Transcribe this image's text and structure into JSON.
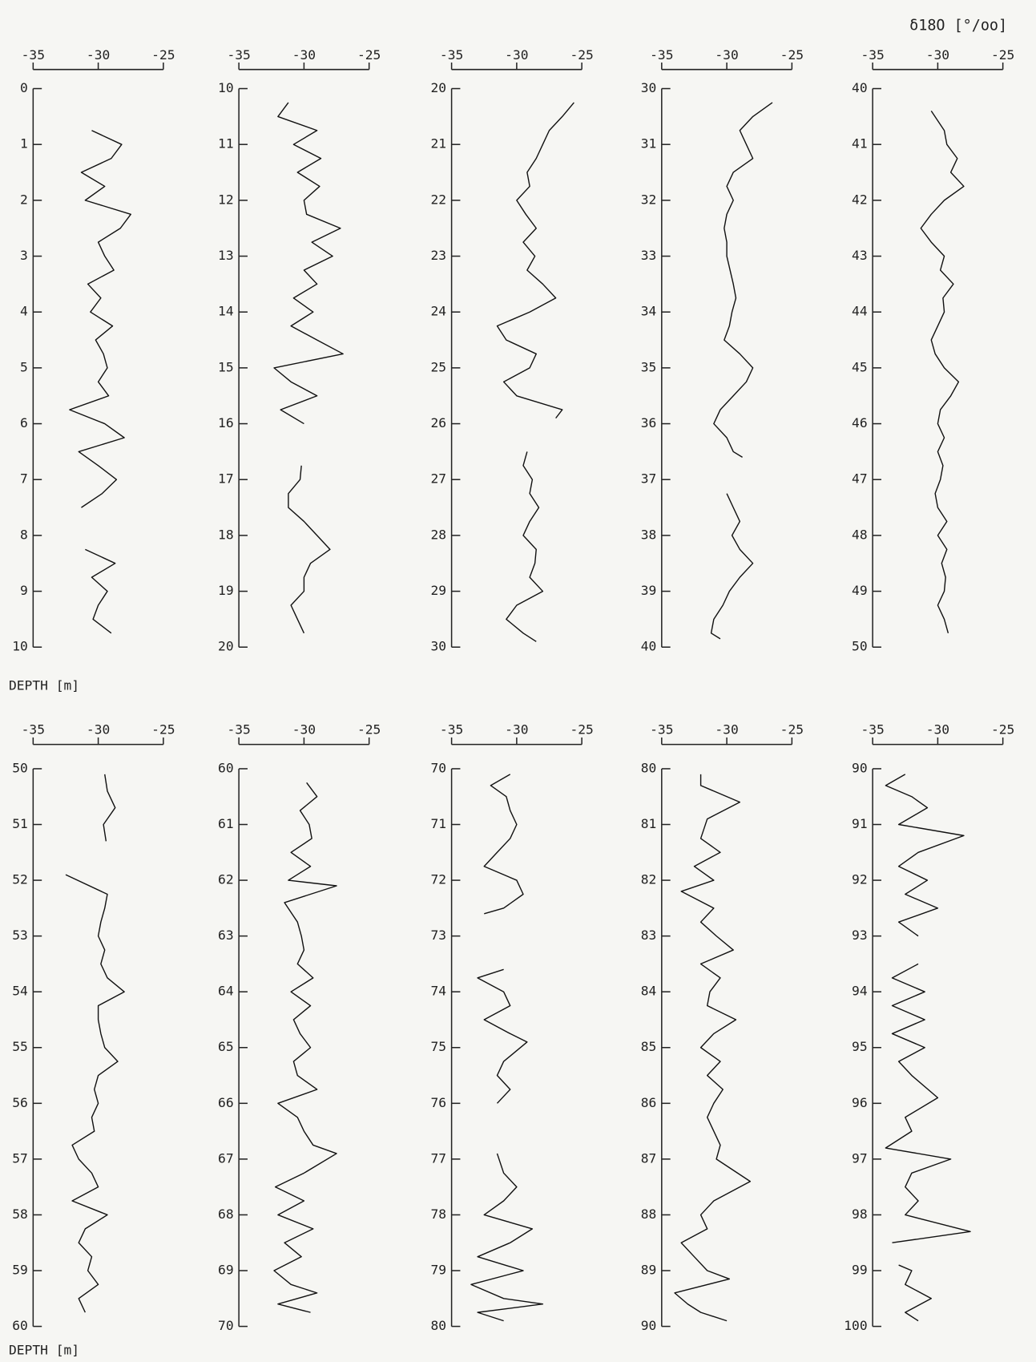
{
  "chart_data": [
    {
      "type": "line",
      "color": "#111111",
      "x_label_side": "none",
      "y_label": "DEPTH [m]",
      "xlim": [
        -35,
        -25
      ],
      "xticks": [
        -35,
        -30,
        -25
      ],
      "ylim": [
        0,
        10
      ],
      "yticks": [
        0,
        1,
        2,
        3,
        4,
        5,
        6,
        7,
        8,
        9,
        10
      ],
      "y": [
        0.75,
        1.0,
        1.25,
        1.5,
        1.75,
        2.0,
        2.25,
        2.5,
        2.75,
        3.0,
        3.25,
        3.5,
        3.75,
        4.0,
        4.25,
        4.5,
        4.75,
        5.0,
        5.25,
        5.5,
        5.75,
        6.0,
        6.25,
        6.5,
        6.75,
        7.0,
        7.25,
        7.5,
        8.0,
        8.25,
        8.5,
        8.75,
        9.0,
        9.25,
        9.5,
        9.75
      ],
      "values": [
        -30.5,
        -28.2,
        -29.0,
        -31.3,
        -29.5,
        -31.0,
        -27.5,
        -28.3,
        -30.0,
        -29.5,
        -28.8,
        -30.8,
        -29.8,
        -30.6,
        -28.9,
        -30.2,
        -29.6,
        -29.3,
        -30.0,
        -29.2,
        -32.2,
        -29.5,
        -28.0,
        -31.5,
        -30.0,
        -28.6,
        -29.7,
        -31.3,
        null,
        -31.0,
        -28.7,
        -30.5,
        -29.3,
        -30.0,
        -30.4,
        -29.0
      ]
    },
    {
      "type": "line",
      "color": "#111111",
      "xlim": [
        -35,
        -25
      ],
      "xticks": [
        -35,
        -30,
        -25
      ],
      "ylim": [
        10,
        20
      ],
      "yticks": [
        10,
        11,
        12,
        13,
        14,
        15,
        16,
        17,
        18,
        19,
        20
      ],
      "y": [
        10.25,
        10.5,
        10.75,
        11.0,
        11.25,
        11.5,
        11.75,
        12.0,
        12.25,
        12.5,
        12.75,
        13.0,
        13.25,
        13.5,
        13.75,
        14.0,
        14.25,
        14.5,
        14.75,
        15.0,
        15.25,
        15.5,
        15.75,
        16.0,
        16.4,
        16.75,
        17.0,
        17.25,
        17.5,
        17.75,
        18.0,
        18.25,
        18.5,
        18.75,
        19.0,
        19.25,
        19.5,
        19.75
      ],
      "values": [
        -31.2,
        -32.0,
        -29.0,
        -30.8,
        -28.7,
        -30.5,
        -28.8,
        -30.0,
        -29.8,
        -27.2,
        -29.4,
        -27.8,
        -30.0,
        -29.0,
        -30.8,
        -29.3,
        -31.0,
        -29.0,
        -27.0,
        -32.3,
        -31.0,
        -29.0,
        -31.8,
        -30.0,
        null,
        -30.2,
        -30.3,
        -31.2,
        -31.2,
        -30.0,
        -29.0,
        -28.0,
        -29.5,
        -30.0,
        -30.0,
        -31.0,
        -30.5,
        -30.0
      ]
    },
    {
      "type": "line",
      "color": "#111111",
      "xlim": [
        -35,
        -25
      ],
      "xticks": [
        -35,
        -30,
        -25
      ],
      "ylim": [
        20,
        30
      ],
      "yticks": [
        20,
        21,
        22,
        23,
        24,
        25,
        26,
        27,
        28,
        29,
        30
      ],
      "y": [
        20.25,
        20.5,
        20.75,
        21.0,
        21.25,
        21.5,
        21.75,
        22.0,
        22.25,
        22.5,
        22.75,
        23.0,
        23.25,
        23.5,
        23.75,
        24.0,
        24.25,
        24.5,
        24.75,
        25.0,
        25.25,
        25.5,
        25.75,
        25.9,
        26.2,
        26.5,
        26.75,
        27.0,
        27.25,
        27.5,
        27.75,
        28.0,
        28.25,
        28.5,
        28.75,
        29.0,
        29.25,
        29.5,
        29.75,
        29.9
      ],
      "values": [
        -25.6,
        -26.5,
        -27.5,
        -28.0,
        -28.5,
        -29.2,
        -29.0,
        -30.0,
        -29.3,
        -28.5,
        -29.5,
        -28.6,
        -29.2,
        -28.0,
        -27.0,
        -29.0,
        -31.5,
        -30.8,
        -28.5,
        -29.0,
        -31.0,
        -30.0,
        -26.5,
        -27.0,
        null,
        -29.2,
        -29.5,
        -28.8,
        -29.0,
        -28.3,
        -29.0,
        -29.5,
        -28.5,
        -28.6,
        -29.0,
        -28.0,
        -30.0,
        -30.8,
        -29.5,
        -28.5
      ]
    },
    {
      "type": "line",
      "color": "#111111",
      "xlim": [
        -35,
        -25
      ],
      "xticks": [
        -35,
        -30,
        -25
      ],
      "ylim": [
        30,
        40
      ],
      "yticks": [
        30,
        31,
        32,
        33,
        34,
        35,
        36,
        37,
        38,
        39,
        40
      ],
      "y": [
        30.25,
        30.5,
        30.75,
        31.0,
        31.25,
        31.5,
        31.75,
        32.0,
        32.25,
        32.5,
        32.75,
        33.0,
        33.5,
        33.75,
        34.0,
        34.25,
        34.5,
        34.75,
        35.0,
        35.25,
        35.5,
        35.75,
        36.0,
        36.25,
        36.5,
        36.6,
        36.9,
        37.25,
        37.5,
        37.75,
        38.0,
        38.25,
        38.5,
        38.75,
        39.0,
        39.25,
        39.5,
        39.75,
        39.85
      ],
      "values": [
        -26.5,
        -28.0,
        -29.0,
        -28.5,
        -28.0,
        -29.5,
        -30.0,
        -29.5,
        -30.0,
        -30.2,
        -30.0,
        -30.0,
        -29.5,
        -29.3,
        -29.6,
        -29.8,
        -30.2,
        -29.0,
        -28.0,
        -28.5,
        -29.5,
        -30.5,
        -31.0,
        -30.0,
        -29.5,
        -28.8,
        null,
        -30.0,
        -29.5,
        -29.0,
        -29.6,
        -29.0,
        -28.0,
        -29.0,
        -29.8,
        -30.3,
        -31.0,
        -31.2,
        -30.5
      ]
    },
    {
      "type": "line",
      "color": "#111111",
      "x_label": "δ18O [°/oo]",
      "xlim": [
        -35,
        -25
      ],
      "xticks": [
        -35,
        -30,
        -25
      ],
      "ylim": [
        40,
        50
      ],
      "yticks": [
        40,
        41,
        42,
        43,
        44,
        45,
        46,
        47,
        48,
        49,
        50
      ],
      "y": [
        40.4,
        40.75,
        41.0,
        41.25,
        41.5,
        41.75,
        42.0,
        42.25,
        42.5,
        42.75,
        43.0,
        43.25,
        43.5,
        43.75,
        44.0,
        44.25,
        44.5,
        44.75,
        45.0,
        45.25,
        45.5,
        45.75,
        46.0,
        46.25,
        46.5,
        46.75,
        47.0,
        47.25,
        47.5,
        47.75,
        48.0,
        48.25,
        48.5,
        48.75,
        49.0,
        49.25,
        49.5,
        49.75
      ],
      "values": [
        -30.5,
        -29.5,
        -29.3,
        -28.5,
        -29.0,
        -28.0,
        -29.5,
        -30.5,
        -31.3,
        -30.5,
        -29.5,
        -29.8,
        -28.8,
        -29.6,
        -29.5,
        -30.0,
        -30.5,
        -30.2,
        -29.5,
        -28.4,
        -29.0,
        -29.8,
        -30.0,
        -29.5,
        -30.0,
        -29.6,
        -29.8,
        -30.2,
        -30.0,
        -29.3,
        -30.0,
        -29.3,
        -29.7,
        -29.4,
        -29.5,
        -30.0,
        -29.5,
        -29.2
      ]
    },
    {
      "type": "line",
      "color": "#111111",
      "y_label": "DEPTH [m]",
      "xlim": [
        -35,
        -25
      ],
      "xticks": [
        -35,
        -30,
        -25
      ],
      "ylim": [
        50,
        60
      ],
      "yticks": [
        50,
        51,
        52,
        53,
        54,
        55,
        56,
        57,
        58,
        59,
        60
      ],
      "y": [
        50.1,
        50.4,
        50.7,
        51.0,
        51.3,
        51.6,
        51.9,
        52.25,
        52.5,
        52.75,
        53.0,
        53.25,
        53.5,
        53.75,
        54.0,
        54.25,
        54.5,
        54.75,
        55.0,
        55.25,
        55.5,
        55.75,
        56.0,
        56.25,
        56.5,
        56.75,
        57.0,
        57.25,
        57.5,
        57.75,
        58.0,
        58.25,
        58.5,
        58.75,
        59.0,
        59.25,
        59.5,
        59.75
      ],
      "values": [
        -29.5,
        -29.3,
        -28.7,
        -29.6,
        -29.4,
        null,
        -32.5,
        -29.3,
        -29.5,
        -29.8,
        -30.0,
        -29.5,
        -29.8,
        -29.3,
        -28.0,
        -30.0,
        -30.0,
        -29.8,
        -29.5,
        -28.5,
        -30.0,
        -30.3,
        -30.0,
        -30.5,
        -30.3,
        -32.0,
        -31.5,
        -30.5,
        -30.0,
        -32.0,
        -29.3,
        -31.0,
        -31.5,
        -30.5,
        -30.8,
        -30.0,
        -31.5,
        -31.0
      ]
    },
    {
      "type": "line",
      "color": "#111111",
      "xlim": [
        -35,
        -25
      ],
      "xticks": [
        -35,
        -30,
        -25
      ],
      "ylim": [
        60,
        70
      ],
      "yticks": [
        60,
        61,
        62,
        63,
        64,
        65,
        66,
        67,
        68,
        69,
        70
      ],
      "y": [
        60.25,
        60.5,
        60.75,
        61.0,
        61.25,
        61.5,
        61.75,
        62.0,
        62.1,
        62.4,
        62.75,
        63.0,
        63.25,
        63.5,
        63.75,
        64.0,
        64.25,
        64.5,
        64.75,
        65.0,
        65.25,
        65.5,
        65.75,
        66.0,
        66.25,
        66.5,
        66.75,
        66.9,
        67.25,
        67.5,
        67.75,
        68.0,
        68.25,
        68.5,
        68.75,
        69.0,
        69.25,
        69.4,
        69.6,
        69.75
      ],
      "values": [
        -29.8,
        -29.0,
        -30.3,
        -29.6,
        -29.4,
        -31.0,
        -29.5,
        -31.2,
        -27.5,
        -31.5,
        -30.5,
        -30.2,
        -30.0,
        -30.5,
        -29.3,
        -31.0,
        -29.5,
        -30.8,
        -30.3,
        -29.5,
        -30.8,
        -30.5,
        -29.0,
        -32.0,
        -30.5,
        -30.0,
        -29.3,
        -27.5,
        -30.0,
        -32.2,
        -30.0,
        -32.0,
        -29.3,
        -31.5,
        -30.2,
        -32.3,
        -31.0,
        -29.0,
        -32.0,
        -29.5
      ]
    },
    {
      "type": "line",
      "color": "#111111",
      "xlim": [
        -35,
        -25
      ],
      "xticks": [
        -35,
        -30,
        -25
      ],
      "ylim": [
        70,
        80
      ],
      "yticks": [
        70,
        71,
        72,
        73,
        74,
        75,
        76,
        77,
        78,
        79,
        80
      ],
      "y": [
        70.1,
        70.3,
        70.5,
        70.75,
        71.0,
        71.25,
        71.5,
        71.75,
        72.0,
        72.25,
        72.5,
        72.6,
        73.0,
        73.6,
        73.75,
        74.0,
        74.25,
        74.5,
        74.75,
        74.9,
        75.25,
        75.5,
        75.75,
        76.0,
        76.5,
        76.9,
        77.25,
        77.5,
        77.75,
        78.0,
        78.25,
        78.5,
        78.75,
        79.0,
        79.25,
        79.5,
        79.6,
        79.75,
        79.9
      ],
      "values": [
        -30.5,
        -32.0,
        -30.8,
        -30.5,
        -30.0,
        -30.5,
        -31.5,
        -32.5,
        -30.0,
        -29.5,
        -31.0,
        -32.5,
        null,
        -31.0,
        -33.0,
        -31.0,
        -30.5,
        -32.5,
        -30.5,
        -29.2,
        -31.0,
        -31.5,
        -30.5,
        -31.5,
        null,
        -31.5,
        -31.0,
        -30.0,
        -31.0,
        -32.5,
        -28.8,
        -30.5,
        -33.0,
        -29.5,
        -33.5,
        -31.0,
        -28.0,
        -33.0,
        -31.0
      ]
    },
    {
      "type": "line",
      "color": "#111111",
      "xlim": [
        -35,
        -25
      ],
      "xticks": [
        -35,
        -30,
        -25
      ],
      "ylim": [
        80,
        90
      ],
      "yticks": [
        80,
        81,
        82,
        83,
        84,
        85,
        86,
        87,
        88,
        89,
        90
      ],
      "y": [
        80.1,
        80.3,
        80.6,
        80.9,
        81.25,
        81.5,
        81.75,
        82.0,
        82.2,
        82.5,
        82.75,
        83.0,
        83.25,
        83.5,
        83.75,
        84.0,
        84.25,
        84.5,
        84.75,
        85.0,
        85.25,
        85.5,
        85.75,
        86.0,
        86.25,
        86.5,
        86.75,
        87.0,
        87.4,
        87.75,
        88.0,
        88.25,
        88.5,
        88.75,
        89.0,
        89.15,
        89.4,
        89.6,
        89.75,
        89.9
      ],
      "values": [
        -32.0,
        -32.0,
        -29.0,
        -31.5,
        -32.0,
        -30.5,
        -32.5,
        -31.0,
        -33.5,
        -31.0,
        -32.0,
        -30.8,
        -29.5,
        -32.0,
        -30.5,
        -31.3,
        -31.5,
        -29.3,
        -31.0,
        -32.0,
        -30.5,
        -31.5,
        -30.3,
        -31.0,
        -31.5,
        -31.0,
        -30.5,
        -30.8,
        -28.2,
        -31.0,
        -32.0,
        -31.5,
        -33.5,
        -32.5,
        -31.5,
        -29.8,
        -34.0,
        -33.0,
        -32.0,
        -30.0
      ]
    },
    {
      "type": "line",
      "color": "#111111",
      "xlim": [
        -35,
        -25
      ],
      "xticks": [
        -35,
        -30,
        -25
      ],
      "ylim": [
        90,
        100
      ],
      "yticks": [
        90,
        91,
        92,
        93,
        94,
        95,
        96,
        97,
        98,
        99,
        100
      ],
      "y": [
        90.1,
        90.3,
        90.5,
        90.7,
        91.0,
        91.2,
        91.5,
        91.75,
        92.0,
        92.25,
        92.5,
        92.75,
        93.0,
        93.3,
        93.5,
        93.75,
        94.0,
        94.25,
        94.5,
        94.75,
        95.0,
        95.25,
        95.5,
        95.9,
        96.25,
        96.5,
        96.8,
        97.0,
        97.25,
        97.5,
        97.75,
        98.0,
        98.3,
        98.5,
        98.7,
        98.9,
        99.0,
        99.25,
        99.5,
        99.75,
        99.9
      ],
      "values": [
        -32.5,
        -34.0,
        -32.0,
        -30.8,
        -33.0,
        -28.0,
        -31.5,
        -33.0,
        -30.8,
        -32.5,
        -30.0,
        -33.0,
        -31.5,
        null,
        -31.5,
        -33.5,
        -31.0,
        -33.5,
        -31.0,
        -33.5,
        -31.0,
        -33.0,
        -32.0,
        -30.0,
        -32.5,
        -32.0,
        -34.0,
        -29.0,
        -32.0,
        -32.5,
        -31.5,
        -32.5,
        -27.5,
        -33.5,
        null,
        -33.0,
        -32.0,
        -32.5,
        -30.5,
        -32.5,
        -31.5
      ]
    }
  ]
}
